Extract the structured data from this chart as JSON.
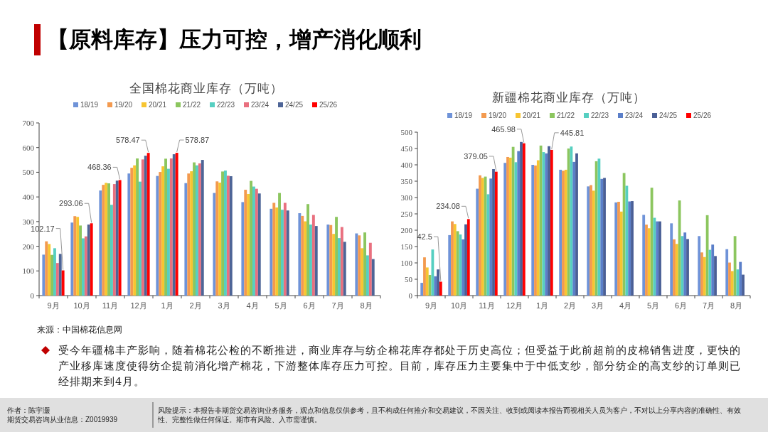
{
  "chart_data": [
    {
      "type": "other",
      "title": "【原料库存】压力可控，增产消化顺利",
      "annotations": [
        "来源：中国棉花信息网",
        "受今年疆棉丰产影响，随着棉花公检的不断推进，商业库存与纺企棉花库存都处于历史高位；但受益于此前超前的皮棉销售进度，更快的产业移库速度使得纺企提前消化增产棉花，下游整体库存压力可控。目前，库存压力主要集中于中低支纱，部分纺企的高支纱的订单则已经排期来到4月。",
        "作者：陈宇灏",
        "期货交易咨询从业信息：Z0019939",
        "风险提示：本报告非期货交易咨询业务服务，观点和信息仅供参考，且不构成任何推介和交易建议，不因关注、收到或阅读本报告而视相关人员为客户，不对以上分享内容的准确性、有效性、完整性做任何保证。期市有风险、入市需谨慎。"
      ]
    },
    {
      "type": "bar",
      "title": "全国棉花商业库存（万吨）",
      "categories": [
        "9月",
        "10月",
        "11月",
        "12月",
        "1月",
        "2月",
        "3月",
        "4月",
        "5月",
        "6月",
        "7月",
        "8月"
      ],
      "ylim": [
        0,
        700
      ],
      "yticks": [
        0,
        100,
        200,
        300,
        400,
        500,
        600,
        700
      ],
      "legend": "top",
      "grid": false,
      "series": [
        {
          "name": "18/19",
          "color": "#6f93d8",
          "values": [
            166,
            296,
            426,
            495,
            485,
            456,
            416,
            379,
            352,
            334,
            288,
            252
          ]
        },
        {
          "name": "19/20",
          "color": "#f39a4f",
          "values": [
            220,
            322,
            449,
            518,
            501,
            495,
            463,
            429,
            376,
            323,
            286,
            244
          ]
        },
        {
          "name": "20/21",
          "color": "#f7c531",
          "values": [
            209,
            319,
            457,
            528,
            524,
            504,
            458,
            412,
            357,
            301,
            250,
            192
          ]
        },
        {
          "name": "21/22",
          "color": "#8cc65f",
          "values": [
            165,
            284,
            455,
            556,
            555,
            540,
            503,
            465,
            416,
            371,
            319,
            256
          ]
        },
        {
          "name": "22/23",
          "color": "#56cfc1",
          "values": [
            192,
            232,
            368,
            462,
            514,
            528,
            507,
            442,
            348,
            288,
            233,
            163
          ]
        },
        {
          "name": "23/24",
          "color": "#e9707f",
          "values": [
            132,
            240,
            452,
            552,
            556,
            536,
            486,
            433,
            376,
            327,
            278,
            214
          ]
        },
        {
          "name": "24/25",
          "color": "#4e6597",
          "values": [
            169,
            288,
            466,
            567,
            573,
            550,
            484,
            414,
            345,
            282,
            218,
            148
          ]
        },
        {
          "name": "25/26",
          "color": "#ff0000",
          "values": [
            102.17,
            293.06,
            468.36,
            578.47,
            578.87,
            null,
            null,
            null,
            null,
            null,
            null,
            null
          ],
          "value_labels": [
            "102.17",
            "293.06",
            "468.36",
            "578.47",
            "578.87",
            null,
            null,
            null,
            null,
            null,
            null,
            null
          ]
        }
      ]
    },
    {
      "type": "bar",
      "title": "新疆棉花商业库存（万吨）",
      "categories": [
        "9月",
        "10月",
        "11月",
        "12月",
        "1月",
        "2月",
        "3月",
        "4月",
        "5月",
        "6月",
        "7月",
        "8月"
      ],
      "ylim": [
        0,
        500
      ],
      "yticks": [
        0,
        50,
        100,
        150,
        200,
        250,
        300,
        350,
        400,
        450,
        500
      ],
      "legend": "top",
      "grid": false,
      "series": [
        {
          "name": "18/19",
          "color": "#6f93d8",
          "values": [
            39,
            185,
            327,
            406,
            400,
            385,
            334,
            285,
            247,
            221,
            182,
            142
          ]
        },
        {
          "name": "19/20",
          "color": "#f39a4f",
          "values": [
            117,
            227,
            368,
            424,
            398,
            382,
            338,
            287,
            217,
            172,
            132,
            101
          ]
        },
        {
          "name": "20/21",
          "color": "#f7c531",
          "values": [
            86,
            219,
            360,
            422,
            414,
            385,
            321,
            257,
            206,
            158,
            118,
            75
          ]
        },
        {
          "name": "21/22",
          "color": "#8cc65f",
          "values": [
            63,
            197,
            364,
            455,
            459,
            450,
            411,
            375,
            330,
            291,
            246,
            182
          ]
        },
        {
          "name": "22/23",
          "color": "#56cfc1",
          "values": [
            141,
            187,
            310,
            408,
            439,
            456,
            419,
            336,
            238,
            182,
            140,
            80
          ]
        },
        {
          "name": "23/24",
          "color": "#5b7fc9",
          "values": [
            59,
            172,
            358,
            442,
            435,
            409,
            357,
            288,
            227,
            193,
            156,
            103
          ]
        },
        {
          "name": "24/25",
          "color": "#4a5f96",
          "values": [
            80,
            218,
            387,
            470,
            457,
            435,
            360,
            289,
            227,
            173,
            121,
            64
          ]
        },
        {
          "name": "25/26",
          "color": "#ff0000",
          "values": [
            42.5,
            234.08,
            379.05,
            465.98,
            445.81,
            null,
            null,
            null,
            null,
            null,
            null,
            null
          ],
          "value_labels": [
            "42.5",
            "234.08",
            "379.05",
            "465.98",
            "445.81",
            null,
            null,
            null,
            null,
            null,
            null,
            null
          ]
        }
      ]
    }
  ]
}
